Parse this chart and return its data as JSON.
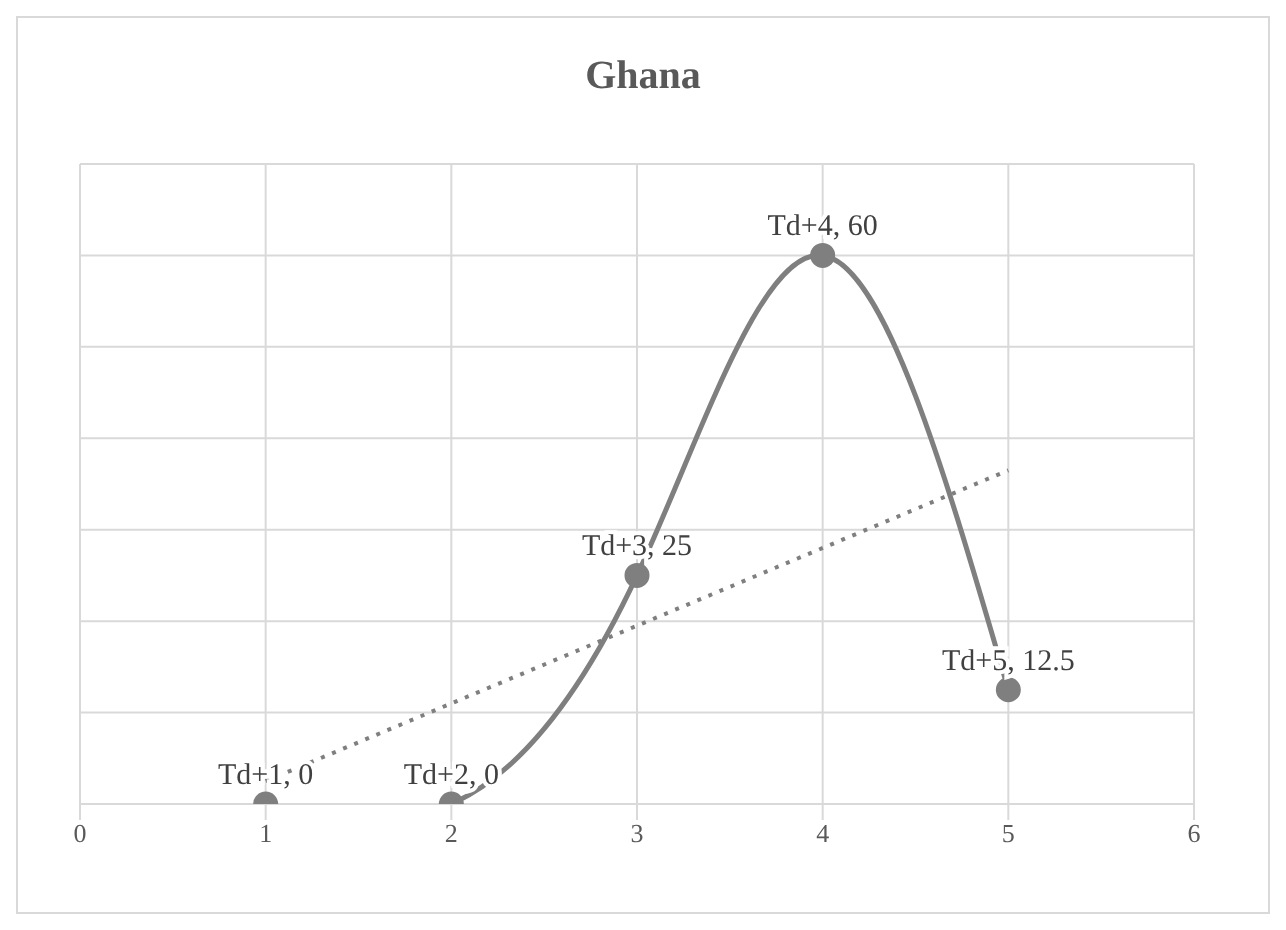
{
  "chart_data": {
    "type": "line",
    "title": "Ghana",
    "x": [
      1,
      2,
      3,
      4,
      5
    ],
    "series": [
      {
        "color": "#7f7f7f",
        "values": [
          0,
          0,
          25,
          60,
          12.5
        ],
        "value_labels": [
          "Td+1, 0",
          "Td+2, 0",
          "Td+3, 25",
          "Td+4, 60",
          "Td+5, 12.5"
        ],
        "marker": "circle",
        "line_style": "solid"
      },
      {
        "type": "line",
        "color": "#7f7f7f",
        "x": [
          1,
          5
        ],
        "values": [
          2.5,
          36.5
        ],
        "marker": "none",
        "line_style": "dotted"
      }
    ],
    "xlim": [
      0,
      6
    ],
    "xticks": [
      0,
      1,
      2,
      3,
      4,
      5,
      6
    ],
    "ylim": [
      0,
      70
    ],
    "yticks": [
      {
        "value": 0,
        "label": null
      },
      {
        "value": 10,
        "label": null
      },
      {
        "value": 20,
        "label": null
      },
      {
        "value": 30,
        "label": null
      },
      {
        "value": 40,
        "label": null
      },
      {
        "value": 50,
        "label": null
      },
      {
        "value": 60,
        "label": null
      },
      {
        "value": 70,
        "label": null
      }
    ],
    "tick_labels": "x",
    "grid": true
  }
}
